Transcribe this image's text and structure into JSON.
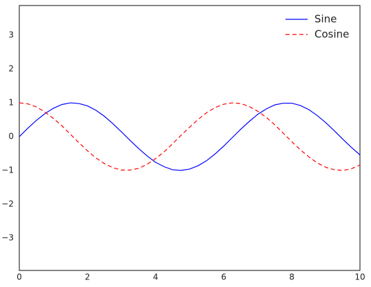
{
  "chart_data": {
    "type": "line",
    "x": [
      0,
      0.25,
      0.5,
      0.75,
      1,
      1.25,
      1.5,
      1.75,
      2,
      2.25,
      2.5,
      2.75,
      3,
      3.25,
      3.5,
      3.75,
      4,
      4.25,
      4.5,
      4.75,
      5,
      5.25,
      5.5,
      5.75,
      6,
      6.25,
      6.5,
      6.75,
      7,
      7.25,
      7.5,
      7.75,
      8,
      8.25,
      8.5,
      8.75,
      9,
      9.25,
      9.5,
      9.75,
      10
    ],
    "series": [
      {
        "name": "Sine",
        "color": "#0000ff",
        "linestyle": "solid",
        "values": [
          0,
          0.25,
          0.48,
          0.68,
          0.84,
          0.95,
          1.0,
          0.98,
          0.91,
          0.78,
          0.6,
          0.38,
          0.14,
          -0.11,
          -0.35,
          -0.57,
          -0.76,
          -0.89,
          -0.98,
          -1.0,
          -0.96,
          -0.86,
          -0.71,
          -0.51,
          -0.28,
          -0.03,
          0.22,
          0.45,
          0.66,
          0.82,
          0.94,
          0.99,
          0.99,
          0.92,
          0.8,
          0.62,
          0.41,
          0.17,
          -0.08,
          -0.32,
          -0.54
        ]
      },
      {
        "name": "Cosine",
        "color": "#ff0000",
        "linestyle": "dashed",
        "values": [
          1,
          0.97,
          0.88,
          0.73,
          0.54,
          0.32,
          0.07,
          -0.18,
          -0.42,
          -0.63,
          -0.8,
          -0.92,
          -0.99,
          -0.99,
          -0.94,
          -0.82,
          -0.65,
          -0.45,
          -0.21,
          0.04,
          0.28,
          0.51,
          0.71,
          0.86,
          0.96,
          1.0,
          0.98,
          0.89,
          0.75,
          0.57,
          0.35,
          0.1,
          -0.15,
          -0.39,
          -0.6,
          -0.78,
          -0.91,
          -0.98,
          -1.0,
          -0.95,
          -0.84
        ]
      }
    ],
    "xlim": [
      0,
      10
    ],
    "xticks": [
      0,
      2,
      4,
      6,
      8,
      10
    ],
    "ylim": [
      -3.96,
      3.88
    ],
    "yticks": [
      {
        "value": -3,
        "label": "−3"
      },
      {
        "value": -2,
        "label": "−2"
      },
      {
        "value": -1,
        "label": "−1"
      },
      0,
      1,
      2,
      3
    ],
    "grid": false,
    "legend": "upper right"
  }
}
